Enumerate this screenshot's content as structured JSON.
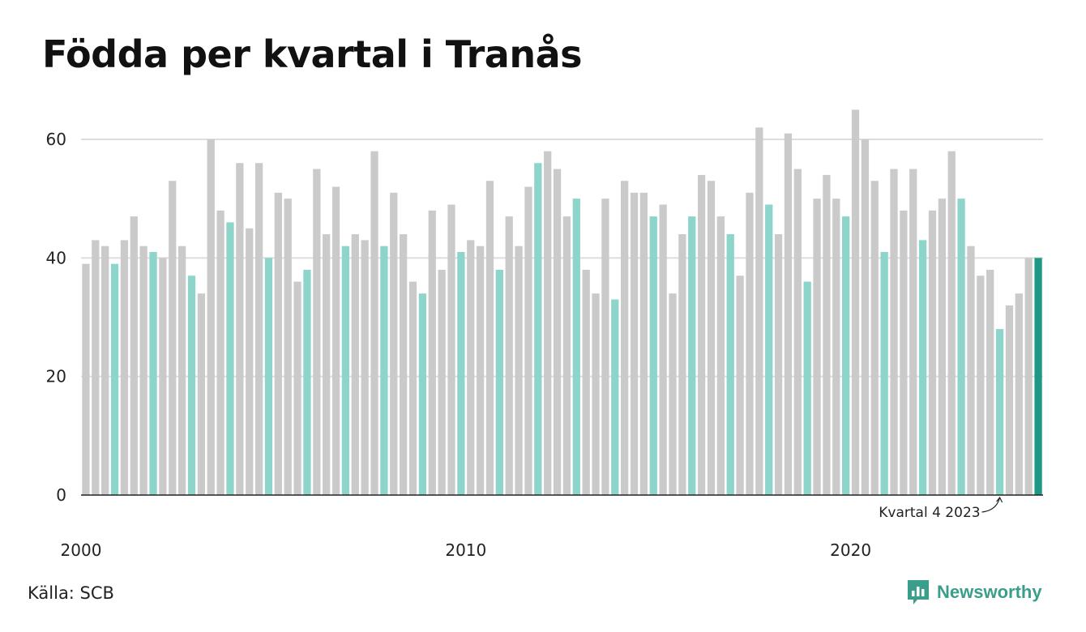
{
  "title": "Födda per kvartal i Tranås",
  "source": "Källa: SCB",
  "brand": {
    "name": "Newsworthy",
    "icon": "newsworthy-logo-icon"
  },
  "colors": {
    "other_quarters": "#cacaca",
    "q4": "#8dd4ca",
    "latest": "#1f9786",
    "grid": "#dddddd",
    "axis": "#222222"
  },
  "chart_data": {
    "type": "bar",
    "title": "Födda per kvartal i Tranås",
    "xlabel": "",
    "ylabel": "",
    "ylim": [
      0,
      65
    ],
    "yticks": [
      0,
      20,
      40,
      60
    ],
    "xticks": [
      "2000",
      "2010",
      "2020"
    ],
    "grid": true,
    "start_year": 2000,
    "annotation": "Kvartal 4 2023",
    "values": [
      39,
      43,
      42,
      39,
      43,
      47,
      42,
      41,
      40,
      53,
      42,
      37,
      34,
      60,
      48,
      46,
      56,
      45,
      56,
      40,
      51,
      50,
      36,
      38,
      55,
      44,
      52,
      42,
      44,
      43,
      58,
      42,
      51,
      44,
      36,
      34,
      48,
      38,
      49,
      41,
      43,
      42,
      53,
      38,
      47,
      42,
      52,
      56,
      58,
      55,
      47,
      50,
      38,
      34,
      50,
      33,
      53,
      51,
      51,
      47,
      49,
      34,
      44,
      47,
      54,
      53,
      47,
      44,
      37,
      51,
      62,
      49,
      44,
      61,
      55,
      36,
      50,
      54,
      50,
      47,
      65,
      60,
      53,
      41,
      55,
      48,
      55,
      43,
      48,
      50,
      58,
      50,
      42,
      37,
      38,
      28,
      32,
      34,
      40,
      40
    ]
  }
}
